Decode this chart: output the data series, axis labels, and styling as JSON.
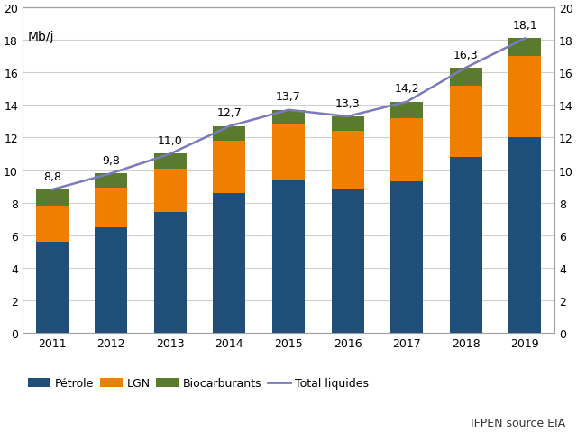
{
  "years": [
    2011,
    2012,
    2013,
    2014,
    2015,
    2016,
    2017,
    2018,
    2019
  ],
  "petrole": [
    5.6,
    6.5,
    7.4,
    8.6,
    9.4,
    8.8,
    9.3,
    10.8,
    12.0
  ],
  "lgn": [
    2.2,
    2.4,
    2.7,
    3.2,
    3.4,
    3.6,
    3.9,
    4.4,
    5.0
  ],
  "biocarburants": [
    1.0,
    0.9,
    0.9,
    0.9,
    0.9,
    0.9,
    1.0,
    1.1,
    1.1
  ],
  "total_liquides": [
    8.8,
    9.8,
    11.0,
    12.7,
    13.7,
    13.3,
    14.2,
    16.3,
    18.1
  ],
  "total_labels": [
    "8,8",
    "9,8",
    "11,0",
    "12,7",
    "13,7",
    "13,3",
    "14,2",
    "16,3",
    "18,1"
  ],
  "color_petrole": "#1f4e79",
  "color_lgn": "#f07f00",
  "color_biocarburants": "#5a7a2e",
  "color_total": "#7b7abf",
  "ylabel_left": "Mb/j",
  "ylim": [
    0,
    20
  ],
  "yticks": [
    0,
    2,
    4,
    6,
    8,
    10,
    12,
    14,
    16,
    18,
    20
  ],
  "legend_petrole": "Pétrole",
  "legend_lgn": "LGN",
  "legend_biocarburants": "Biocarburants",
  "legend_total": "Total liquides",
  "source_text": "IFPEN source EIA",
  "background_color": "#ffffff",
  "grid_color": "#d0d0d0"
}
